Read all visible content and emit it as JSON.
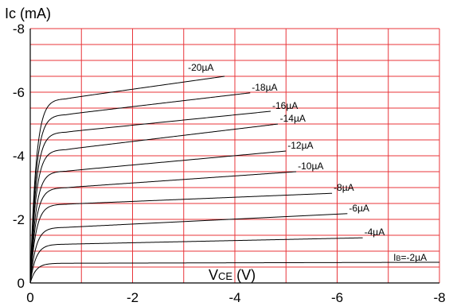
{
  "chart_data": {
    "type": "line",
    "ylabel_main": "Ic",
    "ylabel_unit": " (mA)",
    "xlabel_main": "V",
    "xlabel_sub": "CE",
    "xlabel_unit": " (V)",
    "xlim": [
      0,
      -8
    ],
    "ylim": [
      0,
      -8
    ],
    "x_ticks": [
      "0",
      "-2",
      "-4",
      "-6",
      "-8"
    ],
    "y_ticks": [
      "0",
      "-2",
      "-4",
      "-6",
      "-8"
    ],
    "grid": true,
    "grid_color": "#e8353a",
    "series": [
      {
        "name": "I",
        "name_sub": "B",
        "name_rest": "=-2µA",
        "sat": -0.62,
        "end": -0.65,
        "x_end": -8.0
      },
      {
        "name": "-4µA",
        "sat": -1.22,
        "end": -1.42,
        "x_end": -6.5
      },
      {
        "name": "-6µA",
        "sat": -1.75,
        "end": -2.18,
        "x_end": -6.2
      },
      {
        "name": "-8µA",
        "sat": -2.48,
        "end": -2.82,
        "x_end": -5.9
      },
      {
        "name": "-10µA",
        "sat": -3.0,
        "end": -3.5,
        "x_end": -5.2
      },
      {
        "name": "-12µA",
        "sat": -3.52,
        "end": -4.15,
        "x_end": -5.0
      },
      {
        "name": "-14µA",
        "sat": -4.2,
        "end": -5.0,
        "x_end": -4.85
      },
      {
        "name": "-16µA",
        "sat": -4.75,
        "end": -5.4,
        "x_end": -4.7
      },
      {
        "name": "-18µA",
        "sat": -5.3,
        "end": -5.98,
        "x_end": -4.3
      },
      {
        "name": "-20µA",
        "sat": -5.8,
        "end": -6.5,
        "x_end": -3.8
      }
    ]
  }
}
